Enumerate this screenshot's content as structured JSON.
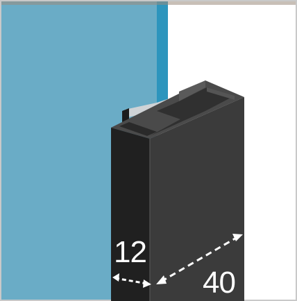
{
  "figure": {
    "thickness_label": "12",
    "depth_label": "40"
  },
  "colors": {
    "glass": "#6aacc6",
    "glass_edge": "#2d95bd",
    "profile_front": "#232323",
    "profile_side": "#3a3a3a",
    "profile_top": "#4e4e4e",
    "gasket": "#cfd3d6",
    "dimension_lines": "#ffffff"
  }
}
